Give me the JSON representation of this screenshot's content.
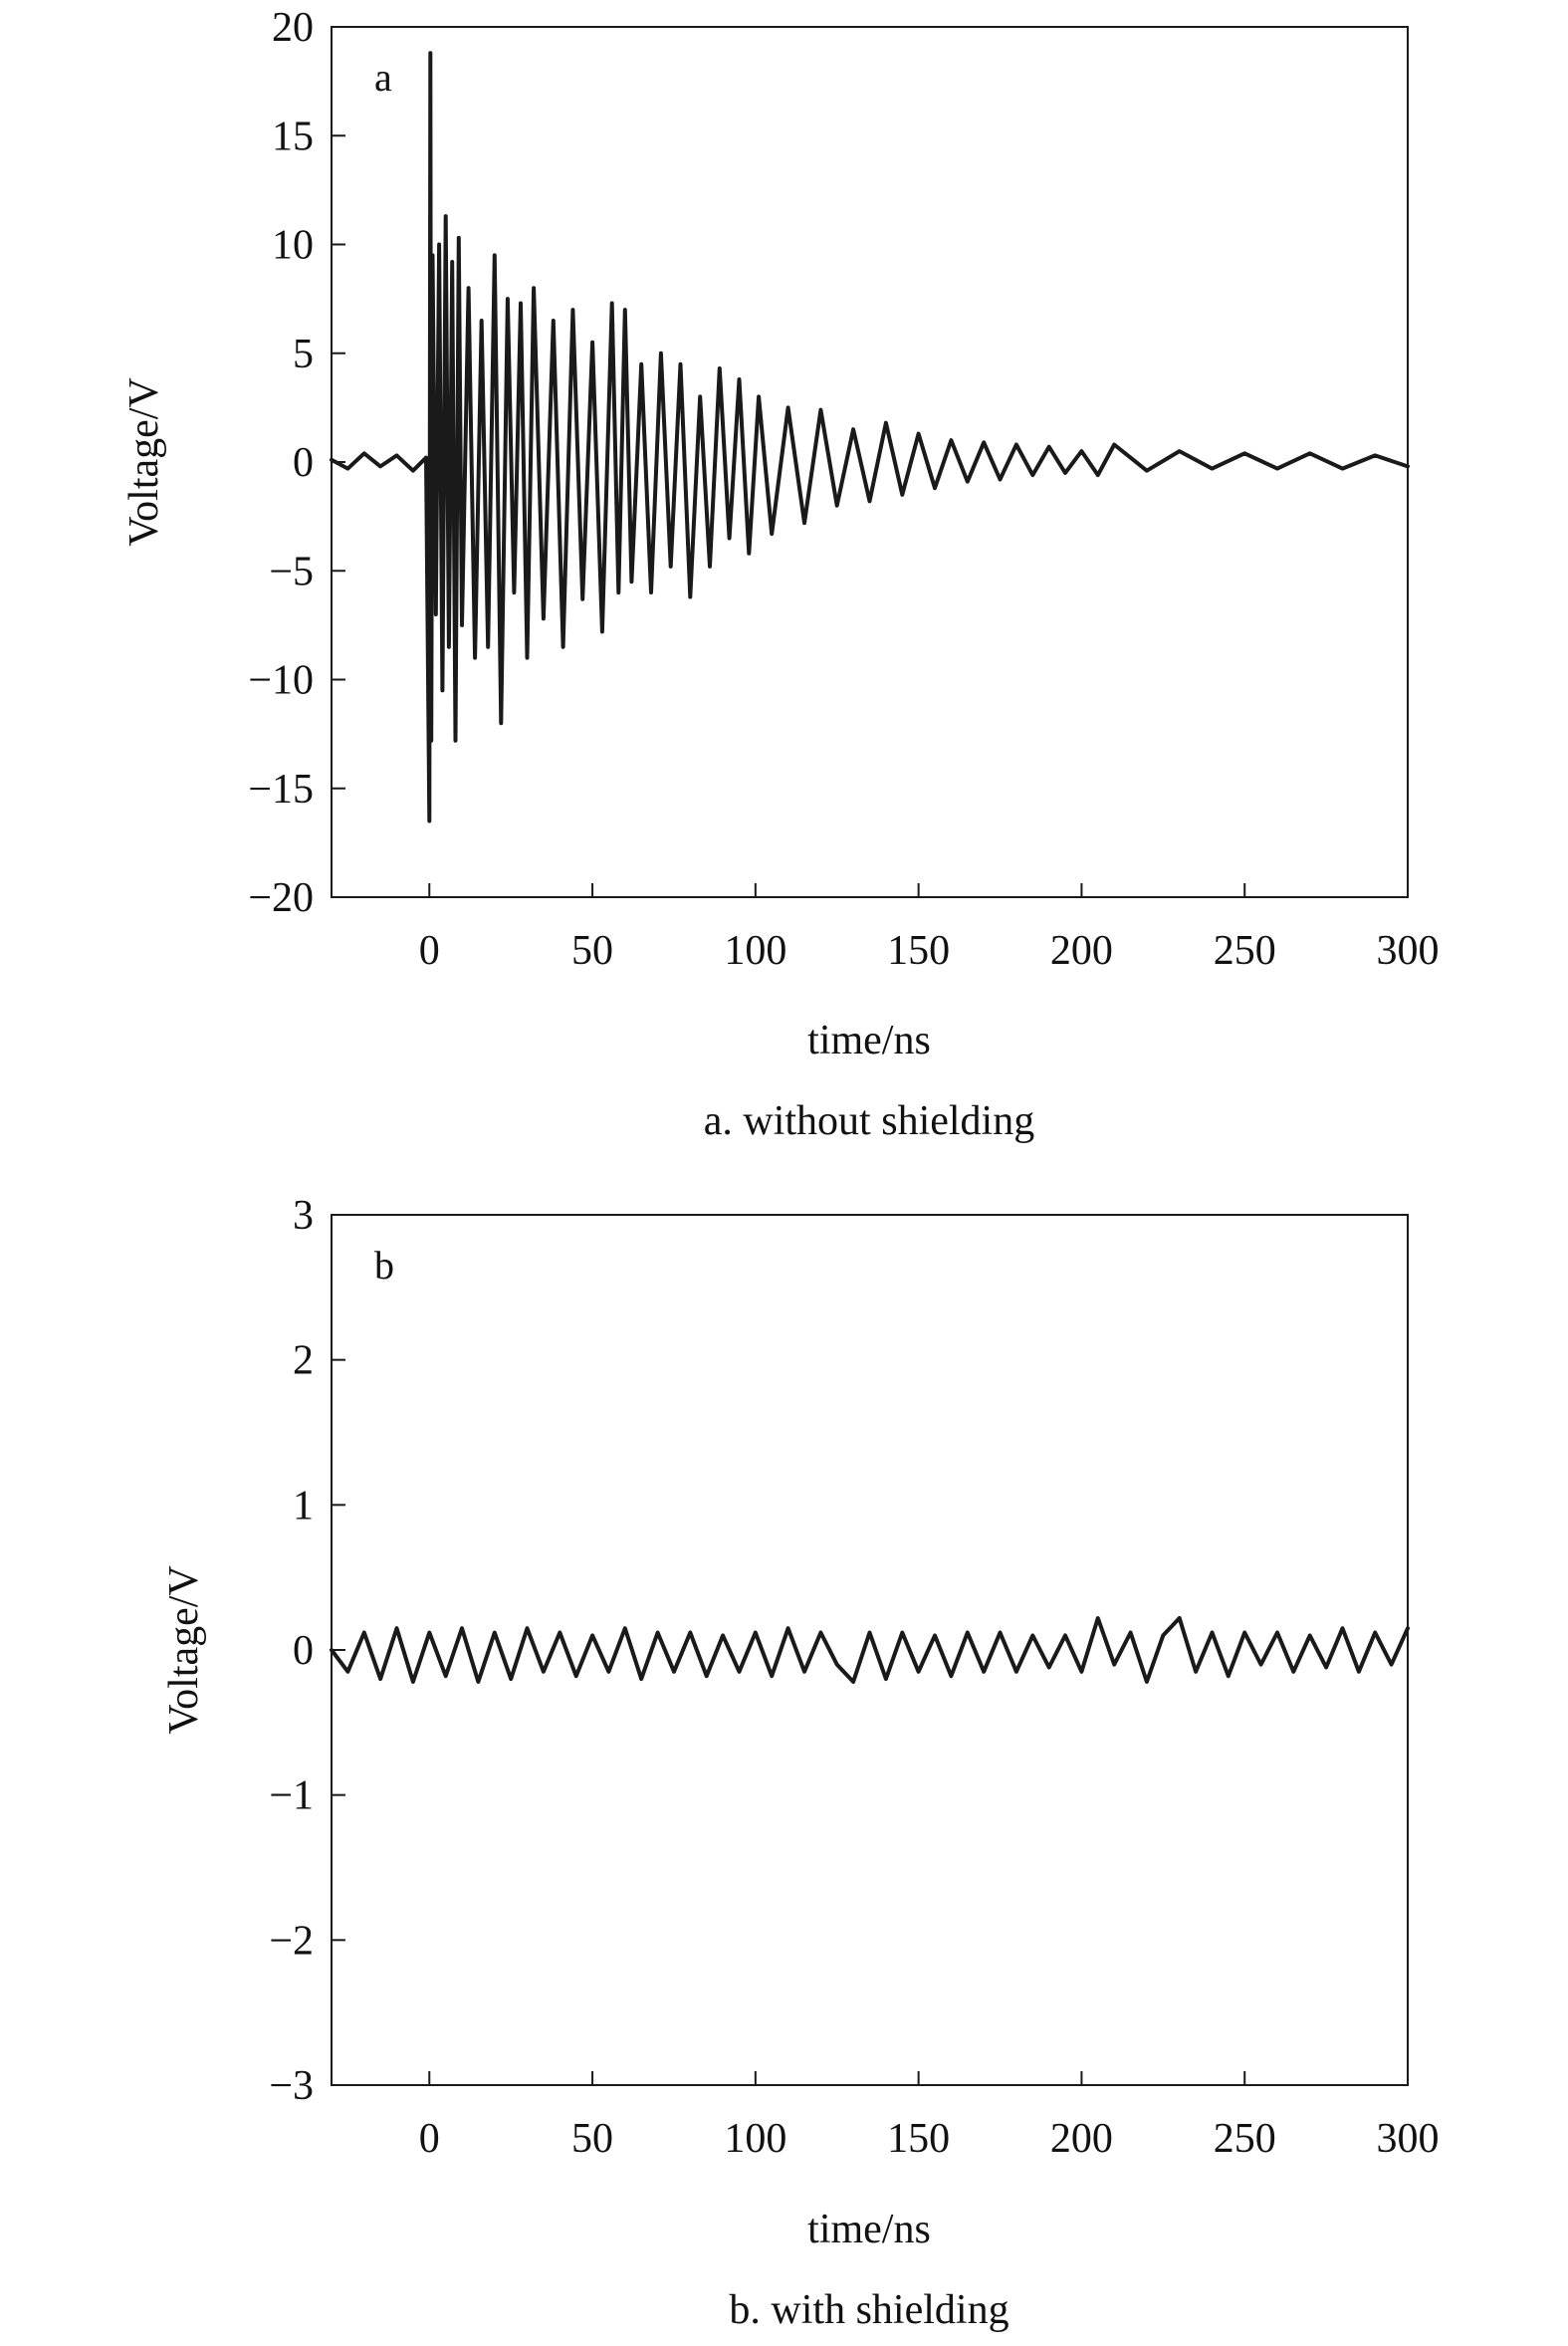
{
  "chart_data": [
    {
      "type": "line",
      "panel_label": "a",
      "caption": "a. without shielding",
      "xlabel": "time/ns",
      "ylabel": "Voltage/V",
      "xlim": [
        -30,
        300
      ],
      "ylim": [
        -20,
        20
      ],
      "xticks": [
        0,
        50,
        100,
        150,
        200,
        250,
        300
      ],
      "yticks": [
        20,
        15,
        10,
        5,
        0,
        -5,
        -10,
        -15,
        -20
      ],
      "ytick_labels": [
        "20",
        "15",
        "10",
        "5",
        "0",
        "−5",
        "−10",
        "−15",
        "−20"
      ],
      "line_color": "#1a1a1a",
      "series": [
        {
          "x": [
            -30,
            -25,
            -20,
            -15,
            -10,
            -5,
            -1,
            0,
            0.3,
            0.6,
            1,
            2,
            3,
            4,
            5,
            6,
            7,
            8,
            9,
            10,
            12,
            14,
            16,
            18,
            20,
            22,
            24,
            26,
            28,
            30,
            32,
            35,
            38,
            41,
            44,
            47,
            50,
            53,
            56,
            58,
            60,
            62,
            65,
            68,
            71,
            74,
            77,
            80,
            83,
            86,
            89,
            92,
            95,
            98,
            101,
            105,
            110,
            115,
            120,
            125,
            130,
            135,
            140,
            145,
            150,
            155,
            160,
            165,
            170,
            175,
            180,
            185,
            190,
            195,
            200,
            205,
            210,
            220,
            230,
            240,
            250,
            260,
            270,
            280,
            290,
            300
          ],
          "y": [
            0.1,
            -0.3,
            0.4,
            -0.2,
            0.3,
            -0.4,
            0.2,
            -16.5,
            18.8,
            -12.8,
            9.5,
            -7.0,
            10.0,
            -10.5,
            11.3,
            -8.5,
            9.2,
            -12.8,
            10.3,
            -7.5,
            8.0,
            -9.0,
            6.5,
            -8.5,
            9.5,
            -12.0,
            7.5,
            -6.0,
            7.3,
            -9.0,
            8.0,
            -7.2,
            6.5,
            -8.5,
            7.0,
            -6.3,
            5.5,
            -7.8,
            7.3,
            -6.0,
            7.0,
            -5.5,
            4.5,
            -6.0,
            5.0,
            -4.8,
            4.5,
            -6.2,
            3.0,
            -4.8,
            4.3,
            -3.5,
            3.8,
            -4.2,
            3.0,
            -3.3,
            2.5,
            -2.8,
            2.4,
            -2.0,
            1.5,
            -1.8,
            1.8,
            -1.5,
            1.3,
            -1.2,
            1.0,
            -0.9,
            0.9,
            -0.8,
            0.8,
            -0.6,
            0.7,
            -0.5,
            0.5,
            -0.6,
            0.8,
            -0.4,
            0.5,
            -0.3,
            0.4,
            -0.3,
            0.4,
            -0.3,
            0.3,
            -0.2
          ]
        }
      ]
    },
    {
      "type": "line",
      "panel_label": "b",
      "caption": "b. with shielding",
      "xlabel": "time/ns",
      "ylabel": "Voltage/V",
      "xlim": [
        -30,
        300
      ],
      "ylim": [
        -3,
        3
      ],
      "xticks": [
        0,
        50,
        100,
        150,
        200,
        250,
        300
      ],
      "yticks": [
        3,
        2,
        1,
        0,
        -1,
        -2,
        -3
      ],
      "ytick_labels": [
        "3",
        "2",
        "1",
        "0",
        "−1",
        "−2",
        "−3"
      ],
      "line_color": "#1a1a1a",
      "series": [
        {
          "x": [
            -30,
            -25,
            -20,
            -15,
            -10,
            -5,
            0,
            5,
            10,
            15,
            20,
            25,
            30,
            35,
            40,
            45,
            50,
            55,
            60,
            65,
            70,
            75,
            80,
            85,
            90,
            95,
            100,
            105,
            110,
            115,
            120,
            125,
            130,
            135,
            140,
            145,
            150,
            155,
            160,
            165,
            170,
            175,
            180,
            185,
            190,
            195,
            200,
            205,
            210,
            215,
            220,
            225,
            230,
            235,
            240,
            245,
            250,
            255,
            260,
            265,
            270,
            275,
            280,
            285,
            290,
            295,
            300
          ],
          "y": [
            0.0,
            -0.15,
            0.12,
            -0.2,
            0.15,
            -0.22,
            0.12,
            -0.18,
            0.15,
            -0.22,
            0.12,
            -0.2,
            0.15,
            -0.15,
            0.12,
            -0.18,
            0.1,
            -0.15,
            0.15,
            -0.2,
            0.12,
            -0.15,
            0.12,
            -0.18,
            0.1,
            -0.15,
            0.12,
            -0.18,
            0.15,
            -0.15,
            0.12,
            -0.1,
            -0.22,
            0.12,
            -0.2,
            0.12,
            -0.15,
            0.1,
            -0.18,
            0.12,
            -0.15,
            0.12,
            -0.15,
            0.1,
            -0.12,
            0.1,
            -0.15,
            0.22,
            -0.1,
            0.12,
            -0.22,
            0.1,
            0.22,
            -0.15,
            0.12,
            -0.18,
            0.12,
            -0.1,
            0.12,
            -0.15,
            0.1,
            -0.12,
            0.15,
            -0.15,
            0.12,
            -0.1,
            0.15
          ]
        }
      ]
    }
  ]
}
